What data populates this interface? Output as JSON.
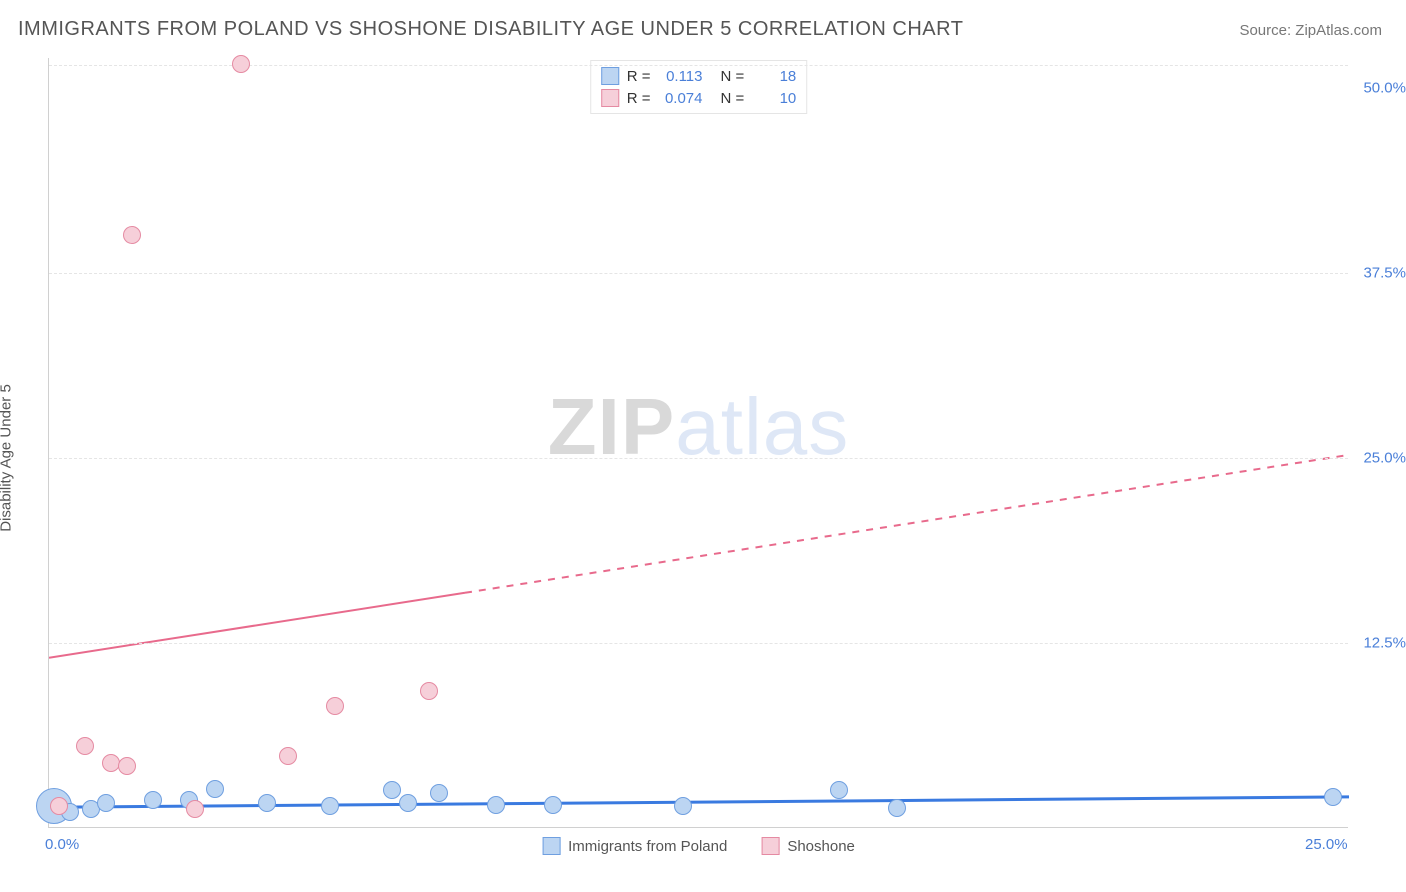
{
  "header": {
    "title": "IMMIGRANTS FROM POLAND VS SHOSHONE DISABILITY AGE UNDER 5 CORRELATION CHART",
    "source": "Source: ZipAtlas.com"
  },
  "watermark": {
    "bold": "ZIP",
    "light": "atlas"
  },
  "chart": {
    "type": "scatter",
    "y_label": "Disability Age Under 5",
    "xlim": [
      0,
      25
    ],
    "ylim": [
      0,
      52
    ],
    "x_ticks": [
      {
        "v": 0,
        "label": "0.0%"
      },
      {
        "v": 25,
        "label": "25.0%"
      }
    ],
    "y_ticks": [
      {
        "v": 12.5,
        "label": "12.5%"
      },
      {
        "v": 25.0,
        "label": "25.0%"
      },
      {
        "v": 37.5,
        "label": "37.5%"
      },
      {
        "v": 50.0,
        "label": "50.0%"
      }
    ],
    "grid_lines_y": [
      12.5,
      25.0,
      37.5,
      51.5
    ],
    "background_color": "#ffffff",
    "grid_color": "#e5e5e5",
    "axis_color": "#d0d0d0",
    "tick_label_color": "#4a7fd8",
    "series": [
      {
        "name": "Immigrants from Poland",
        "fill": "#bcd5f2",
        "stroke": "#6f9fe0",
        "marker_radius": 9,
        "R": "0.113",
        "N": "18",
        "trend": {
          "x1": 0,
          "y1": 1.4,
          "x2": 25,
          "y2": 2.1,
          "solid_until_x": 25,
          "stroke": "#3a7ae0",
          "width": 3
        },
        "points": [
          {
            "x": 0.1,
            "y": 1.4,
            "r": 18
          },
          {
            "x": 0.4,
            "y": 1.0,
            "r": 9
          },
          {
            "x": 0.8,
            "y": 1.2,
            "r": 9
          },
          {
            "x": 1.1,
            "y": 1.6,
            "r": 9
          },
          {
            "x": 2.0,
            "y": 1.8,
            "r": 9
          },
          {
            "x": 2.7,
            "y": 1.8,
            "r": 9
          },
          {
            "x": 3.2,
            "y": 2.6,
            "r": 9
          },
          {
            "x": 4.2,
            "y": 1.6,
            "r": 9
          },
          {
            "x": 5.4,
            "y": 1.4,
            "r": 9
          },
          {
            "x": 6.6,
            "y": 2.5,
            "r": 9
          },
          {
            "x": 6.9,
            "y": 1.6,
            "r": 9
          },
          {
            "x": 7.5,
            "y": 2.3,
            "r": 9
          },
          {
            "x": 8.6,
            "y": 1.5,
            "r": 9
          },
          {
            "x": 9.7,
            "y": 1.5,
            "r": 9
          },
          {
            "x": 12.2,
            "y": 1.4,
            "r": 9
          },
          {
            "x": 15.2,
            "y": 2.5,
            "r": 9
          },
          {
            "x": 16.3,
            "y": 1.3,
            "r": 9
          },
          {
            "x": 24.7,
            "y": 2.0,
            "r": 9
          }
        ]
      },
      {
        "name": "Shoshone",
        "fill": "#f6cfd9",
        "stroke": "#e58aa2",
        "marker_radius": 9,
        "R": "0.074",
        "N": "10",
        "trend": {
          "x1": 0,
          "y1": 11.5,
          "x2": 25,
          "y2": 25.2,
          "solid_until_x": 8,
          "stroke": "#e86a8c",
          "width": 2
        },
        "points": [
          {
            "x": 0.2,
            "y": 1.4,
            "r": 9
          },
          {
            "x": 0.7,
            "y": 5.5,
            "r": 9
          },
          {
            "x": 1.2,
            "y": 4.3,
            "r": 9
          },
          {
            "x": 1.5,
            "y": 4.1,
            "r": 9
          },
          {
            "x": 1.6,
            "y": 40.0,
            "r": 9
          },
          {
            "x": 2.8,
            "y": 1.2,
            "r": 9
          },
          {
            "x": 3.7,
            "y": 51.5,
            "r": 9
          },
          {
            "x": 4.6,
            "y": 4.8,
            "r": 9
          },
          {
            "x": 5.5,
            "y": 8.2,
            "r": 9
          },
          {
            "x": 7.3,
            "y": 9.2,
            "r": 9
          }
        ]
      }
    ],
    "legend_top_labels": {
      "r": "R  =",
      "n": "N  ="
    },
    "legend_bottom": [
      {
        "label": "Immigrants from Poland",
        "fill": "#bcd5f2",
        "stroke": "#6f9fe0"
      },
      {
        "label": "Shoshone",
        "fill": "#f6cfd9",
        "stroke": "#e58aa2"
      }
    ]
  }
}
